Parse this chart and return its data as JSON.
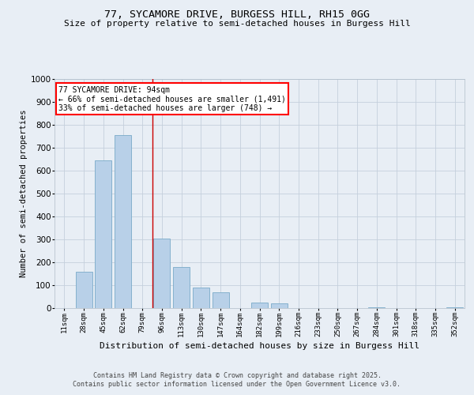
{
  "title1": "77, SYCAMORE DRIVE, BURGESS HILL, RH15 0GG",
  "title2": "Size of property relative to semi-detached houses in Burgess Hill",
  "xlabel": "Distribution of semi-detached houses by size in Burgess Hill",
  "ylabel": "Number of semi-detached properties",
  "bin_labels": [
    "11sqm",
    "28sqm",
    "45sqm",
    "62sqm",
    "79sqm",
    "96sqm",
    "113sqm",
    "130sqm",
    "147sqm",
    "164sqm",
    "182sqm",
    "199sqm",
    "216sqm",
    "233sqm",
    "250sqm",
    "267sqm",
    "284sqm",
    "301sqm",
    "318sqm",
    "335sqm",
    "352sqm"
  ],
  "bar_values": [
    0,
    160,
    645,
    755,
    0,
    305,
    180,
    90,
    70,
    0,
    25,
    20,
    0,
    0,
    0,
    0,
    5,
    0,
    0,
    0,
    5
  ],
  "bar_color": "#b8d0e8",
  "bar_edge_color": "#7aaac8",
  "vline_bin_index": 5,
  "vline_color": "#cc0000",
  "annotation_title": "77 SYCAMORE DRIVE: 94sqm",
  "annotation_line1": "← 66% of semi-detached houses are smaller (1,491)",
  "annotation_line2": "33% of semi-detached houses are larger (748) →",
  "ylim": [
    0,
    1000
  ],
  "yticks": [
    0,
    100,
    200,
    300,
    400,
    500,
    600,
    700,
    800,
    900,
    1000
  ],
  "footer1": "Contains HM Land Registry data © Crown copyright and database right 2025.",
  "footer2": "Contains public sector information licensed under the Open Government Licence v3.0.",
  "bg_color": "#e8eef5",
  "grid_color": "#c5d0dc",
  "title1_fontsize": 9.5,
  "title2_fontsize": 8.0,
  "ylabel_fontsize": 7.5,
  "xlabel_fontsize": 8.0,
  "tick_fontsize": 6.5,
  "ytick_fontsize": 7.5,
  "footer_fontsize": 6.0
}
